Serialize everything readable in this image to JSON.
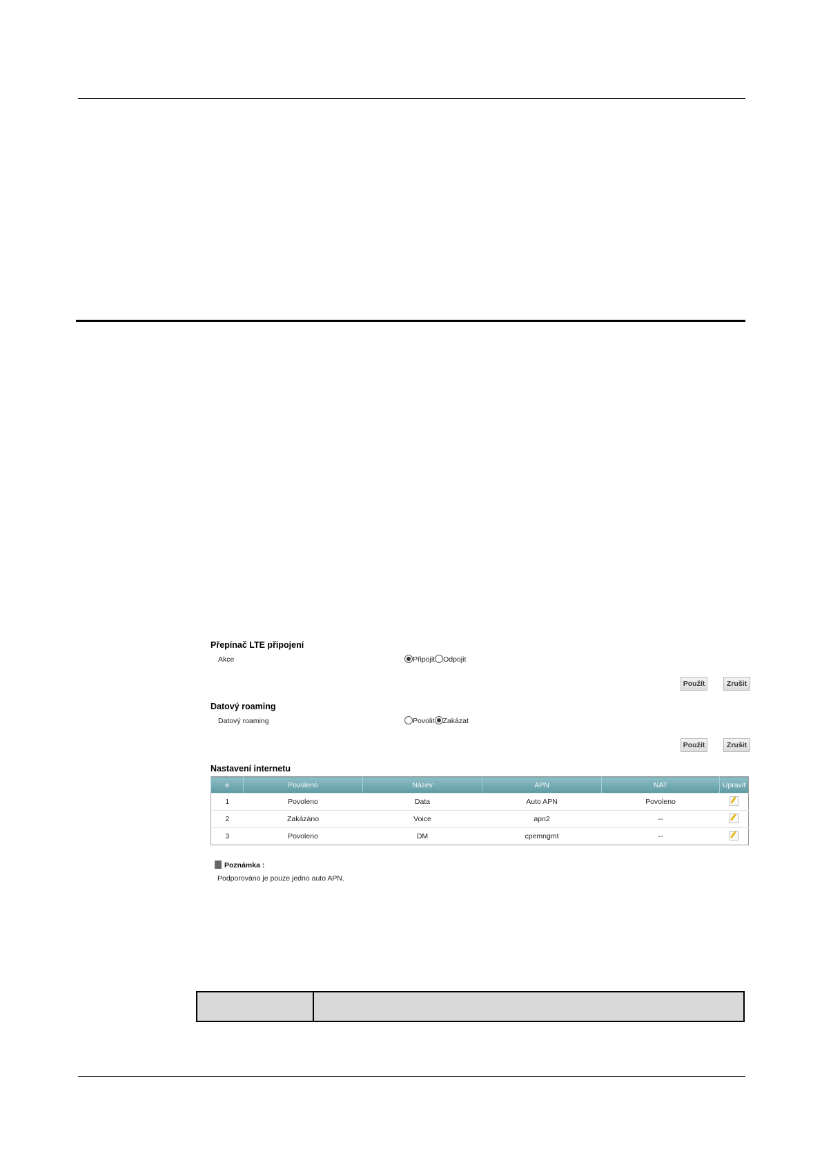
{
  "lte_switch": {
    "title": "Přepínač LTE připojení",
    "action_label": "Akce",
    "options": [
      {
        "label": "Připojit",
        "selected": true
      },
      {
        "label": "Odpojit",
        "selected": false
      }
    ],
    "apply": "Použít",
    "cancel": "Zrušit"
  },
  "roaming": {
    "title": "Datový roaming",
    "label": "Datový roaming",
    "options": [
      {
        "label": "Povolit",
        "selected": false
      },
      {
        "label": "Zakázat",
        "selected": true
      }
    ],
    "apply": "Použít",
    "cancel": "Zrušit"
  },
  "internet": {
    "title": "Nastavení internetu",
    "columns": [
      "#",
      "Povoleno",
      "Název",
      "APN",
      "NAT",
      "Upravit"
    ],
    "rows": [
      [
        "1",
        "Povoleno",
        "Data",
        "Auto APN",
        "Povoleno"
      ],
      [
        "2",
        "Zakázáno",
        "Voice",
        "apn2",
        "--"
      ],
      [
        "3",
        "Povoleno",
        "DM",
        "cpemngmt",
        "--"
      ]
    ],
    "edit_icon": "pencil-edit-icon",
    "header_color": "#6fa8b0"
  },
  "note": {
    "title": "Poznámka :",
    "text": "Podporováno je pouze jedno auto APN.",
    "icon": "note-icon"
  }
}
